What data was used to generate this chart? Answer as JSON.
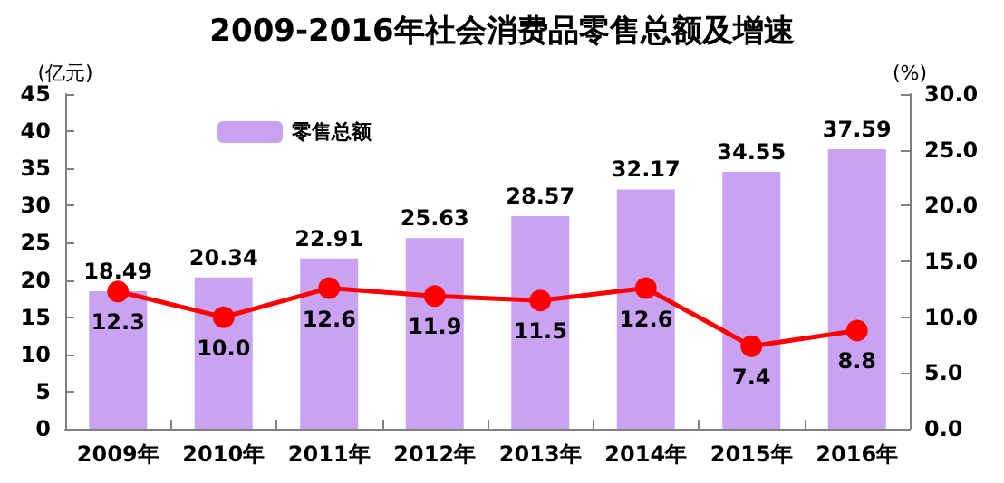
{
  "chart_data": {
    "type": "bar",
    "title": "2009-2016年社会消费品零售总额及增速",
    "ylabel": "(亿元)",
    "y2label": "(%)",
    "categories": [
      "2009年",
      "2010年",
      "2011年",
      "2012年",
      "2013年",
      "2014年",
      "2015年",
      "2016年"
    ],
    "series": [
      {
        "name": "零售总额",
        "color": "#c9a3f2",
        "values": [
          18.49,
          20.34,
          22.91,
          25.63,
          28.57,
          32.17,
          34.55,
          37.59
        ]
      },
      {
        "type": "line",
        "axis": "y2",
        "color": "#ff0000",
        "values": [
          12.3,
          10.0,
          12.6,
          11.9,
          11.5,
          12.6,
          7.4,
          8.8
        ],
        "value_labels": [
          "12.3",
          "10.0",
          "12.6",
          "11.9",
          "11.5",
          "12.6",
          "7.4",
          "8.8"
        ]
      }
    ],
    "ylim": [
      0,
      45
    ],
    "yticks": [
      0,
      5,
      10,
      15,
      20,
      25,
      30,
      35,
      40,
      45
    ],
    "y2lim": [
      0,
      30
    ],
    "y2ticks": [
      {
        "value": 0,
        "label": "0.0"
      },
      {
        "value": 5,
        "label": "5.0"
      },
      {
        "value": 10,
        "label": "10.0"
      },
      {
        "value": 15,
        "label": "15.0"
      },
      {
        "value": 20,
        "label": "20.0"
      },
      {
        "value": 25,
        "label": "25.0"
      },
      {
        "value": 30,
        "label": "30.0"
      }
    ],
    "data_labels": true,
    "legend": "top left",
    "marker": "circle",
    "line_style": "solid",
    "grid": false
  }
}
